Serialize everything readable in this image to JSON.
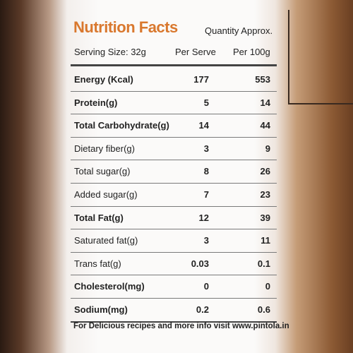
{
  "header": {
    "title": "Nutrition Facts",
    "note": "Quantity Approx."
  },
  "table": {
    "columns": [
      "Serving Size: 32g",
      "Per Serve",
      "Per 100g"
    ],
    "rows": [
      [
        "Energy (Kcal)",
        177,
        553
      ],
      [
        "Protein(g)",
        5,
        14
      ],
      [
        "Total Carbohydrate(g)",
        14,
        44
      ],
      [
        "Dietary fiber(g)",
        3,
        9
      ],
      [
        "Total sugar(g)",
        8,
        26
      ],
      [
        "Added sugar(g)",
        7,
        23
      ],
      [
        "Total Fat(g)",
        12,
        39
      ],
      [
        "Saturated fat(g)",
        3,
        11
      ],
      [
        "Trans fat(g)",
        0.03,
        0.1
      ],
      [
        "Cholesterol(mg)",
        0,
        0
      ],
      [
        "Sodium(mg)",
        0.2,
        0.6
      ]
    ]
  },
  "footer": "For Delicious recipes and more info visit www.pintola.in"
}
